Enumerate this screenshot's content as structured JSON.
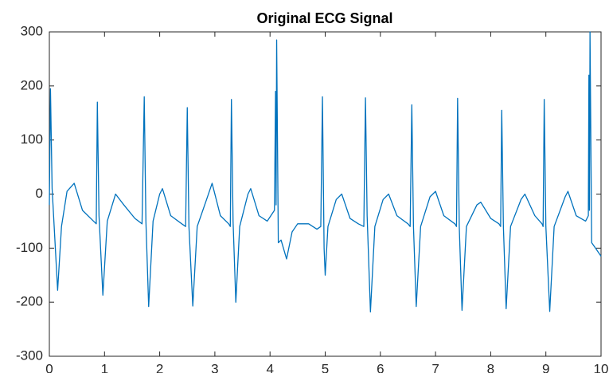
{
  "chart_data": {
    "type": "line",
    "title": "Original ECG Signal",
    "color": "#0072bd",
    "x": [
      0,
      0.02,
      0.05,
      0.15,
      0.22,
      0.32,
      0.45,
      0.6,
      0.8,
      0.85,
      0.87,
      0.9,
      0.97,
      1.05,
      1.2,
      1.35,
      1.55,
      1.68,
      1.72,
      1.75,
      1.8,
      1.88,
      2.0,
      2.05,
      2.2,
      2.4,
      2.47,
      2.5,
      2.53,
      2.6,
      2.68,
      2.85,
      2.95,
      3.1,
      3.25,
      3.28,
      3.3,
      3.33,
      3.38,
      3.45,
      3.6,
      3.65,
      3.8,
      3.95,
      4.08,
      4.1,
      4.11,
      4.12,
      4.15,
      4.2,
      4.3,
      4.4,
      4.5,
      4.7,
      4.85,
      4.92,
      4.95,
      4.98,
      5.0,
      5.05,
      5.2,
      5.3,
      5.45,
      5.6,
      5.7,
      5.73,
      5.76,
      5.82,
      5.9,
      6.05,
      6.15,
      6.3,
      6.5,
      6.54,
      6.57,
      6.6,
      6.65,
      6.73,
      6.9,
      7.0,
      7.15,
      7.35,
      7.38,
      7.4,
      7.43,
      7.48,
      7.56,
      7.75,
      7.82,
      8.0,
      8.15,
      8.18,
      8.2,
      8.23,
      8.28,
      8.36,
      8.55,
      8.62,
      8.8,
      8.93,
      8.95,
      8.97,
      9.0,
      9.07,
      9.15,
      9.35,
      9.4,
      9.55,
      9.72,
      9.77,
      9.78,
      9.79,
      9.8,
      9.83,
      9.9,
      10
    ],
    "values": [
      -20,
      195,
      10,
      -178,
      -60,
      5,
      20,
      -30,
      -50,
      -55,
      170,
      -40,
      -187,
      -50,
      0,
      -20,
      -45,
      -55,
      180,
      -50,
      -208,
      -50,
      0,
      10,
      -40,
      -55,
      -60,
      160,
      -60,
      -207,
      -60,
      -10,
      20,
      -40,
      -55,
      -60,
      175,
      -50,
      -200,
      -60,
      0,
      10,
      -40,
      -50,
      -30,
      190,
      -20,
      285,
      -90,
      -85,
      -120,
      -70,
      -55,
      -55,
      -65,
      -60,
      180,
      -100,
      -150,
      -60,
      -10,
      0,
      -45,
      -55,
      -60,
      178,
      -40,
      -218,
      -60,
      -10,
      0,
      -40,
      -55,
      -60,
      165,
      -60,
      -208,
      -60,
      -5,
      5,
      -40,
      -55,
      -60,
      177,
      -60,
      -215,
      -60,
      -20,
      -15,
      -45,
      -55,
      -60,
      155,
      -60,
      -212,
      -60,
      -10,
      0,
      -40,
      -55,
      -60,
      175,
      -60,
      -217,
      -60,
      -5,
      5,
      -40,
      -50,
      -40,
      220,
      -30,
      300,
      -90,
      -100,
      -115
    ],
    "xlim": [
      0,
      10
    ],
    "xticks": [
      0,
      1,
      2,
      3,
      4,
      5,
      6,
      7,
      8,
      9,
      10
    ],
    "ylim": [
      -300,
      300
    ],
    "yticks": [
      -300,
      -200,
      -100,
      0,
      100,
      200,
      300
    ]
  }
}
